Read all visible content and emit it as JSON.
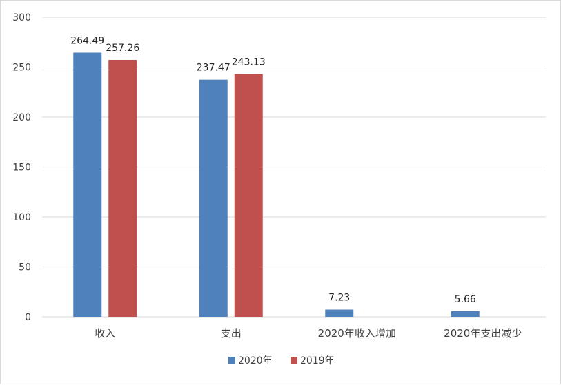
{
  "chart_data": {
    "type": "bar",
    "categories": [
      "收入",
      "支出",
      "2020年收入增加",
      "2020年支出减少"
    ],
    "series": [
      {
        "name": "2020年",
        "color": "#4f81bd",
        "values": [
          264.49,
          237.47,
          7.23,
          5.66
        ],
        "labels": [
          "264.49",
          "237.47",
          "7.23",
          "5.66"
        ]
      },
      {
        "name": "2019年",
        "color": "#c0504d",
        "values": [
          257.26,
          243.13,
          null,
          null
        ],
        "labels": [
          "257.26",
          "243.13",
          "",
          ""
        ]
      }
    ],
    "yticks": [
      "0",
      "50",
      "100",
      "150",
      "200",
      "250",
      "300"
    ],
    "ylim": [
      0,
      300
    ],
    "grid": true,
    "legend": "bottom-center",
    "gridline_color": "#d9d9d9"
  }
}
